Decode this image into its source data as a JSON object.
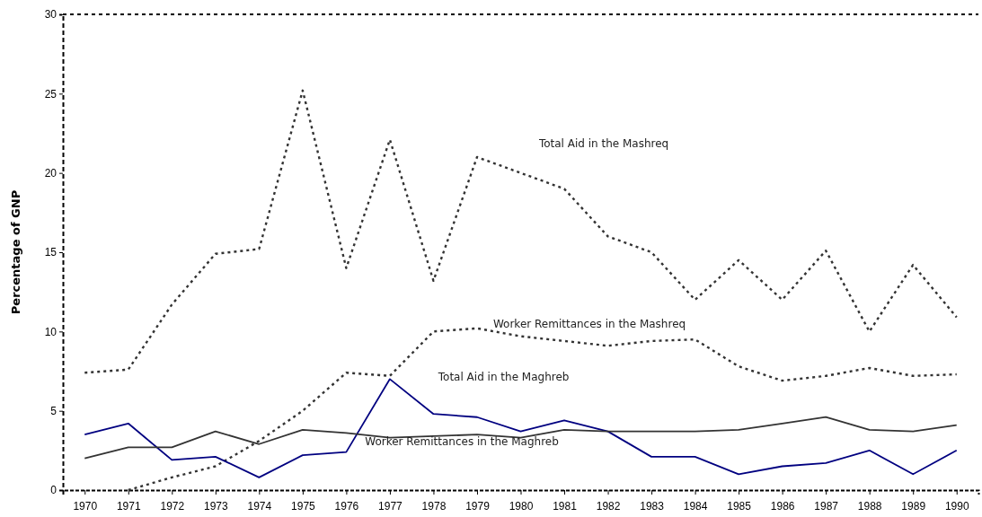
{
  "chart_data": {
    "type": "line",
    "ylabel": "Percentage of GNP",
    "categories": [
      "1970",
      "1971",
      "1972",
      "1973",
      "1974",
      "1975",
      "1976",
      "1977",
      "1978",
      "1979",
      "1980",
      "1981",
      "1982",
      "1983",
      "1984",
      "1985",
      "1986",
      "1987",
      "1988",
      "1989",
      "1990"
    ],
    "ylim": [
      0,
      30
    ],
    "yticks": [
      0,
      5,
      10,
      15,
      20,
      25,
      30
    ],
    "grid": false,
    "legend": false,
    "marker": "none",
    "series": [
      {
        "name": "Total Aid in the Mashreq",
        "color": "#333333",
        "line_style": "dotted",
        "values": [
          7.4,
          7.6,
          11.7,
          14.9,
          15.2,
          25.2,
          14.0,
          22.1,
          13.2,
          21.0,
          20.0,
          19.0,
          16.0,
          15.0,
          12.0,
          14.5,
          12.0,
          15.1,
          10.0,
          14.2,
          10.9
        ]
      },
      {
        "name": "Worker Remittances in the Mashreq",
        "color": "#333333",
        "line_style": "dotted",
        "values": [
          null,
          0,
          0.8,
          1.5,
          3.1,
          5.0,
          7.4,
          7.2,
          10.0,
          10.2,
          9.7,
          9.4,
          9.1,
          9.4,
          9.5,
          7.8,
          6.9,
          7.2,
          7.7,
          7.2,
          7.3
        ]
      },
      {
        "name": "Total Aid in the Maghreb",
        "color": "#000080",
        "line_style": "solid",
        "values": [
          3.5,
          4.2,
          1.9,
          2.1,
          0.8,
          2.2,
          2.4,
          7.0,
          4.8,
          4.6,
          3.7,
          4.4,
          3.7,
          2.1,
          2.1,
          1.0,
          1.5,
          1.7,
          2.5,
          1.0,
          2.5
        ]
      },
      {
        "name": "Worker Remittances in the Maghreb",
        "color": "#333333",
        "line_style": "solid",
        "values": [
          2.0,
          2.7,
          2.7,
          3.7,
          2.9,
          3.8,
          3.6,
          3.3,
          3.4,
          3.5,
          3.3,
          3.8,
          3.7,
          3.7,
          3.7,
          3.8,
          4.2,
          4.6,
          3.8,
          3.7,
          4.1
        ]
      }
    ]
  }
}
